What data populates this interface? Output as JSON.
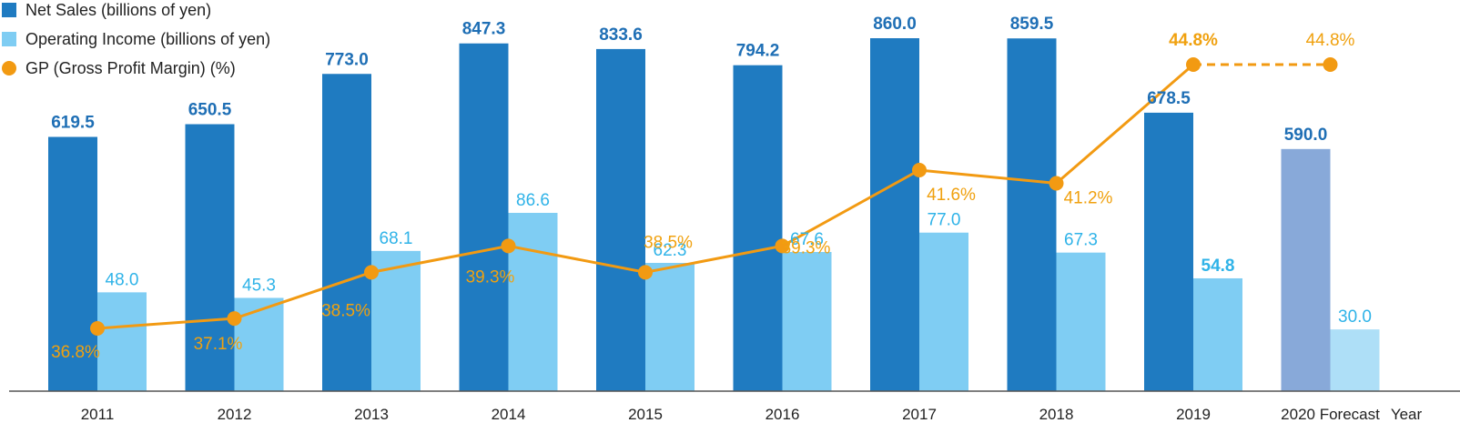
{
  "chart_data": {
    "type": "bar",
    "categories": [
      "2011",
      "2012",
      "2013",
      "2014",
      "2015",
      "2016",
      "2017",
      "2018",
      "2019",
      "2020 Forecast"
    ],
    "x_axis_unit": "Year",
    "series": [
      {
        "name": "Net Sales (billions of yen)",
        "type": "bar",
        "values": [
          619.5,
          650.5,
          773.0,
          847.3,
          833.6,
          794.2,
          860.0,
          859.5,
          678.5,
          590.0
        ],
        "labels": [
          "619.5",
          "650.5",
          "773.0",
          "847.3",
          "833.6",
          "794.2",
          "860.0",
          "859.5",
          "678.5",
          "590.0"
        ]
      },
      {
        "name": "Operating Income (billions of yen)",
        "type": "bar",
        "values": [
          48.0,
          45.3,
          68.1,
          86.6,
          62.3,
          67.6,
          77.0,
          67.3,
          54.8,
          30.0
        ],
        "labels": [
          "48.0",
          "45.3",
          "68.1",
          "86.6",
          "62.3",
          "67.6",
          "77.0",
          "67.3",
          "54.8",
          "30.0"
        ]
      },
      {
        "name": "GP (Gross Profit Margin) (%)",
        "type": "line",
        "values": [
          36.8,
          37.1,
          38.5,
          39.3,
          38.5,
          39.3,
          41.6,
          41.2,
          44.8,
          44.8
        ],
        "labels": [
          "36.8%",
          "37.1%",
          "38.5%",
          "39.3%",
          "38.5%",
          "39.3%",
          "41.6%",
          "41.2%",
          "44.8%",
          "44.8%"
        ]
      }
    ],
    "forecast_category": "2020 Forecast",
    "grid": false,
    "legend_position": "top-left",
    "colors": {
      "net_sales": "#1f7bc1",
      "net_sales_forecast": "#88a9d9",
      "operating_income": "#7fcdf3",
      "operating_income_forecast": "#aedff7",
      "gp_line": "#f29a12",
      "sales_label": "#1f6fb5",
      "op_label": "#2fb3e8",
      "gp_label": "#f0a10f"
    }
  }
}
